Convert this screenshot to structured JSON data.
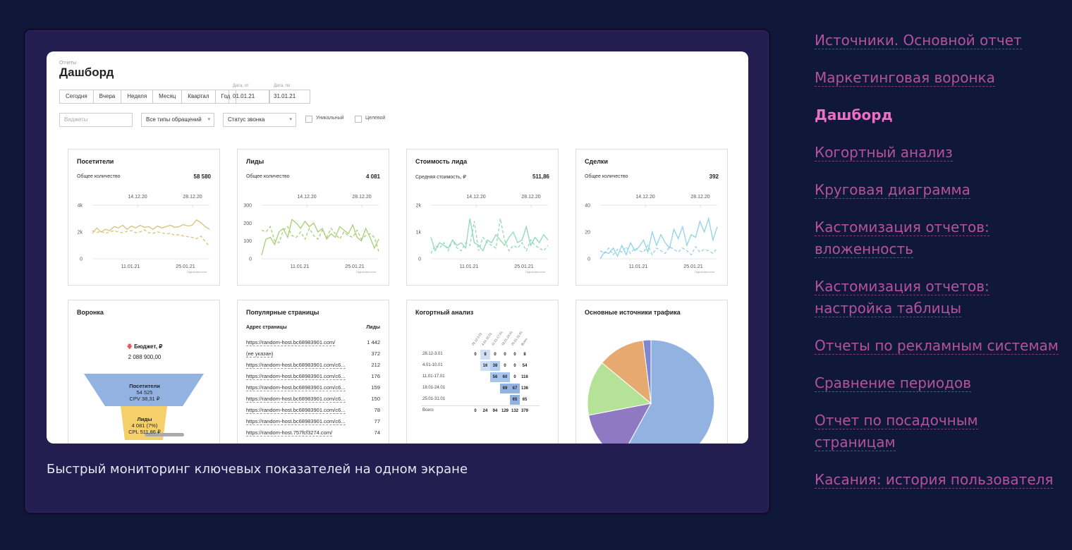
{
  "caption": "Быстрый мониторинг ключевых показателей на одном экране",
  "sidebar": {
    "items": [
      {
        "label": "Источники. Основной отчет",
        "active": false
      },
      {
        "label": "Маркетинговая воронка",
        "active": false
      },
      {
        "label": "Дашборд",
        "active": true
      },
      {
        "label": "Когортный анализ",
        "active": false
      },
      {
        "label": "Круговая диаграмма",
        "active": false
      },
      {
        "label": "Кастомизация отчетов: вложенность",
        "active": false
      },
      {
        "label": "Кастомизация отчетов: настройка таблицы",
        "active": false
      },
      {
        "label": "Отчеты по рекламным системам",
        "active": false
      },
      {
        "label": "Сравнение периодов",
        "active": false
      },
      {
        "label": "Отчет по посадочным страницам",
        "active": false
      },
      {
        "label": "Касания: история пользователя",
        "active": false
      }
    ]
  },
  "dashboard": {
    "breadcrumb": "Отчеты",
    "title": "Дашборд",
    "periods": [
      "Сегодня",
      "Вчера",
      "Неделя",
      "Месяц",
      "Квартал",
      "Год"
    ],
    "date_from_label": "Дата, от",
    "date_from": "01.01.21",
    "date_to_label": "Дата, по",
    "date_to": "31.01.21",
    "widgets_placeholder": "Виджеты",
    "request_type": "Все типы обращений",
    "call_status": "Статус звонка",
    "unique_label": "Уникальный",
    "target_label": "Целевой",
    "credit": "Highcharts.com"
  },
  "chart_data": [
    {
      "type": "line",
      "title": "Посетители",
      "metric_label": "Общее количество",
      "metric_value": "58 580",
      "top_dates": [
        "14.12.20",
        "28.12.20"
      ],
      "x_labels": [
        "11.01.21",
        "25.01.21"
      ],
      "y_ticks": [
        "4k",
        "2k",
        "0"
      ],
      "ylim": [
        0,
        4000
      ],
      "color": "#d8c27a",
      "series": [
        {
          "name": "current",
          "values": [
            1900,
            2300,
            2000,
            2200,
            2100,
            2400,
            2300,
            2500,
            2200,
            2450,
            2300,
            2500,
            2350,
            2400,
            2200,
            2450,
            2300,
            2400,
            2500,
            2350,
            2400,
            2550,
            2450,
            2500,
            2900,
            2700,
            2400,
            2200
          ]
        },
        {
          "name": "previous",
          "values": [
            2100,
            1950,
            2050,
            1900,
            2000,
            2100,
            2000,
            1950,
            2050,
            2100,
            1950,
            2000,
            2150,
            1950,
            1900,
            2000,
            1950,
            1850,
            1900,
            1750,
            1800,
            1700,
            1650,
            1600,
            1500,
            1700,
            1300,
            900
          ]
        }
      ]
    },
    {
      "type": "line",
      "title": "Лиды",
      "metric_label": "Общее количество",
      "metric_value": "4 081",
      "top_dates": [
        "14.12.20",
        "28.12.20"
      ],
      "x_labels": [
        "11.01.21",
        "25.01.21"
      ],
      "y_ticks": [
        "300",
        "200",
        "100",
        "0"
      ],
      "ylim": [
        0,
        300
      ],
      "color": "#a6cf73",
      "series": [
        {
          "name": "current",
          "values": [
            20,
            110,
            120,
            80,
            150,
            170,
            120,
            220,
            200,
            170,
            210,
            180,
            200,
            150,
            170,
            110,
            140,
            120,
            180,
            160,
            140,
            190,
            120,
            100,
            170,
            120,
            60,
            110
          ]
        },
        {
          "name": "previous",
          "values": [
            160,
            150,
            180,
            100,
            90,
            160,
            180,
            130,
            120,
            150,
            110,
            170,
            130,
            110,
            160,
            120,
            170,
            140,
            110,
            150,
            130,
            120,
            160,
            110,
            130,
            140,
            120,
            40
          ]
        }
      ]
    },
    {
      "type": "line",
      "title": "Стоимость лида",
      "metric_label": "Средняя стоимость, ₽",
      "metric_value": "511,86",
      "top_dates": [
        "14.12.20",
        "28.12.20"
      ],
      "x_labels": [
        "11.01.21",
        "25.01.21"
      ],
      "y_ticks": [
        "2k",
        "1k",
        "0"
      ],
      "ylim": [
        0,
        2000
      ],
      "color": "#8fd9b6",
      "series": [
        {
          "name": "current",
          "values": [
            800,
            300,
            600,
            500,
            400,
            700,
            500,
            600,
            400,
            1500,
            600,
            500,
            300,
            700,
            600,
            900,
            700,
            500,
            800,
            1000,
            600,
            700,
            1200,
            500,
            800,
            600,
            900,
            700
          ]
        },
        {
          "name": "previous",
          "values": [
            200,
            500,
            400,
            600,
            300,
            700,
            400,
            300,
            600,
            500,
            1400,
            300,
            800,
            600,
            500,
            400,
            1500,
            700,
            300,
            500,
            400,
            600,
            300,
            700,
            500,
            400,
            300,
            500
          ]
        }
      ]
    },
    {
      "type": "line",
      "title": "Сделки",
      "metric_label": "Общее количество",
      "metric_value": "392",
      "top_dates": [
        "14.12.20",
        "28.12.20"
      ],
      "x_labels": [
        "11.01.21",
        "25.01.21"
      ],
      "y_ticks": [
        "40",
        "20",
        "0"
      ],
      "ylim": [
        0,
        40
      ],
      "color": "#8ed4ea",
      "series": [
        {
          "name": "current",
          "values": [
            0,
            5,
            4,
            8,
            2,
            10,
            3,
            12,
            6,
            9,
            14,
            5,
            20,
            10,
            18,
            12,
            8,
            22,
            15,
            24,
            10,
            18,
            16,
            28,
            20,
            30,
            14,
            24
          ]
        },
        {
          "name": "previous",
          "values": [
            6,
            4,
            8,
            3,
            7,
            5,
            9,
            4,
            8,
            6,
            5,
            10,
            3,
            8,
            6,
            4,
            9,
            7,
            5,
            8,
            6,
            3,
            9,
            5,
            7,
            6,
            4,
            8
          ]
        }
      ]
    },
    {
      "type": "pie",
      "title": "Основные источники трафика",
      "values": [
        58,
        14,
        14,
        12,
        2
      ],
      "colors": [
        "#92b3e1",
        "#9079c3",
        "#b4e297",
        "#e6aa71",
        "#7e87d0"
      ]
    }
  ],
  "funnel": {
    "title": "Воронка",
    "budget_label": "Бюджет, ₽",
    "budget_value": "2 088 900,00",
    "stage1_name": "Посетители",
    "stage1_value": "54 525",
    "stage1_cost": "CPV 38,31 ₽",
    "stage2_name": "Лиды",
    "stage2_value": "4 081 (7%)",
    "stage2_cost": "CPL 511,86 ₽"
  },
  "popular_pages": {
    "title": "Популярные страницы",
    "col_url": "Адрес страницы",
    "col_leads": "Лиды",
    "rows": [
      {
        "url": "https://random-host.bc68983901.com/",
        "leads": "1 442"
      },
      {
        "url": "(не указан)",
        "leads": "372"
      },
      {
        "url": "https://random-host.bc68983901.com/c6...",
        "leads": "212"
      },
      {
        "url": "https://random-host.bc68983901.com/c6...",
        "leads": "176"
      },
      {
        "url": "https://random-host.bc68983901.com/c6...",
        "leads": "159"
      },
      {
        "url": "https://random-host.bc68983901.com/c6...",
        "leads": "150"
      },
      {
        "url": "https://random-host.bc68983901.com/c6...",
        "leads": "78"
      },
      {
        "url": "https://random-host.bc68983901.com/c6...",
        "leads": "77"
      },
      {
        "url": "https://random-host.757fcf3274.com/",
        "leads": "74"
      }
    ]
  },
  "cohort": {
    "title": "Когортный анализ",
    "headers": [
      "28.12-3.01",
      "4.01-10.01",
      "11.01-17.01",
      "18.01-24.01",
      "25.01-31.01",
      "Всего"
    ],
    "rows": [
      {
        "label": "28.12-3.01",
        "cells": [
          "0",
          "8",
          "0",
          "0",
          "0",
          "8"
        ]
      },
      {
        "label": "4.01-10.01",
        "cells": [
          "",
          "16",
          "38",
          "0",
          "0",
          "54"
        ]
      },
      {
        "label": "11.01-17.01",
        "cells": [
          "",
          "",
          "56",
          "60",
          "0",
          "116"
        ]
      },
      {
        "label": "18.01-24.01",
        "cells": [
          "",
          "",
          "",
          "69",
          "67",
          "136"
        ]
      },
      {
        "label": "25.01-31.01",
        "cells": [
          "",
          "",
          "",
          "",
          "65",
          "65"
        ]
      },
      {
        "label": "Всего",
        "cells": [
          "0",
          "24",
          "94",
          "129",
          "132",
          "379"
        ]
      }
    ]
  }
}
